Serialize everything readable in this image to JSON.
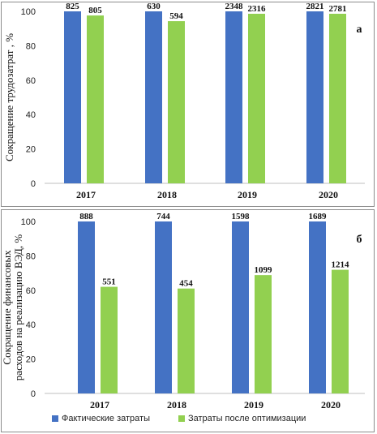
{
  "chart_data": [
    {
      "type": "bar",
      "panel_label": "а",
      "categories": [
        "2017",
        "2018",
        "2019",
        "2020"
      ],
      "ylabel": "Сокращение трудозатрат , %",
      "ylim": [
        0,
        100
      ],
      "yticks": [
        0,
        20,
        40,
        60,
        80,
        100
      ],
      "grid": false,
      "series": [
        {
          "name": "Фактические затраты",
          "color": "#4472C4",
          "values": [
            100,
            100,
            100,
            100
          ],
          "labels": [
            "825",
            "630",
            "2348",
            "2821"
          ]
        },
        {
          "name": "Затраты после оптимизации",
          "color": "#92D050",
          "values": [
            97.6,
            94.3,
            98.6,
            98.6
          ],
          "labels": [
            "805",
            "594",
            "2316",
            "2781"
          ]
        }
      ]
    },
    {
      "type": "bar",
      "panel_label": "б",
      "categories": [
        "2017",
        "2018",
        "2019",
        "2020"
      ],
      "ylabel": "Сокращение финансовых расходов на реализацию ВЭД, %",
      "ylim": [
        0,
        100
      ],
      "yticks": [
        0,
        20,
        40,
        60,
        80,
        100
      ],
      "grid": false,
      "series": [
        {
          "name": "Фактические затраты",
          "color": "#4472C4",
          "values": [
            100,
            100,
            100,
            100
          ],
          "labels": [
            "888",
            "744",
            "1598",
            "1689"
          ]
        },
        {
          "name": "Затраты после оптимизации",
          "color": "#92D050",
          "values": [
            62.0,
            61.0,
            68.8,
            71.9
          ],
          "labels": [
            "551",
            "454",
            "1099",
            "1214"
          ]
        }
      ]
    }
  ],
  "legend": {
    "placement": "bottom",
    "items": [
      {
        "label": "Фактические затраты",
        "color": "#4472C4"
      },
      {
        "label": "Затраты после оптимизации",
        "color": "#92D050"
      }
    ]
  }
}
